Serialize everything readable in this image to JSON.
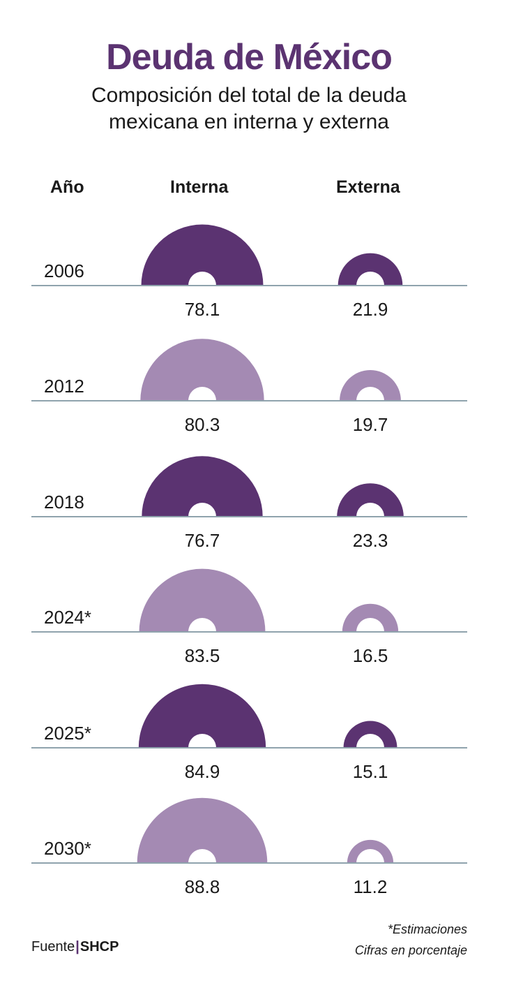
{
  "title": "Deuda de México",
  "subtitle": {
    "line1": "Composición del total de la deuda",
    "line2": "mexicana en interna y externa"
  },
  "headers": {
    "year": "Año",
    "internal": "Interna",
    "external": "Externa"
  },
  "colors": {
    "dark": "#5b3371",
    "light": "#a48ab3",
    "baseline": "#8fa3ad"
  },
  "chart_data": {
    "type": "semicircle-comparison",
    "title": "Deuda de México",
    "subtitle": "Composición del total de la deuda mexicana en interna y externa",
    "unit": "Cifras en porcentaje",
    "categories": [
      "2006",
      "2012",
      "2018",
      "2024*",
      "2025*",
      "2030*"
    ],
    "series": [
      {
        "name": "Interna",
        "values": [
          78.1,
          80.3,
          76.7,
          83.5,
          84.9,
          88.8
        ]
      },
      {
        "name": "Externa",
        "values": [
          21.9,
          19.7,
          23.3,
          16.5,
          15.1,
          11.2
        ]
      }
    ],
    "value_labels": {
      "Interna": [
        "78.1",
        "80.3",
        "76.7",
        "83.5",
        "84.9",
        "88.8"
      ],
      "Externa": [
        "21.9",
        "19.7",
        "23.3",
        "16.5",
        "15.1",
        "11.2"
      ]
    },
    "row_shading": [
      "dark",
      "light",
      "dark",
      "light",
      "dark",
      "light"
    ]
  },
  "notes": {
    "estimates": "*Estimaciones",
    "units": "Cifras en porcentaje"
  },
  "source": {
    "label": "Fuente",
    "separator": "|",
    "name": "SHCP"
  }
}
